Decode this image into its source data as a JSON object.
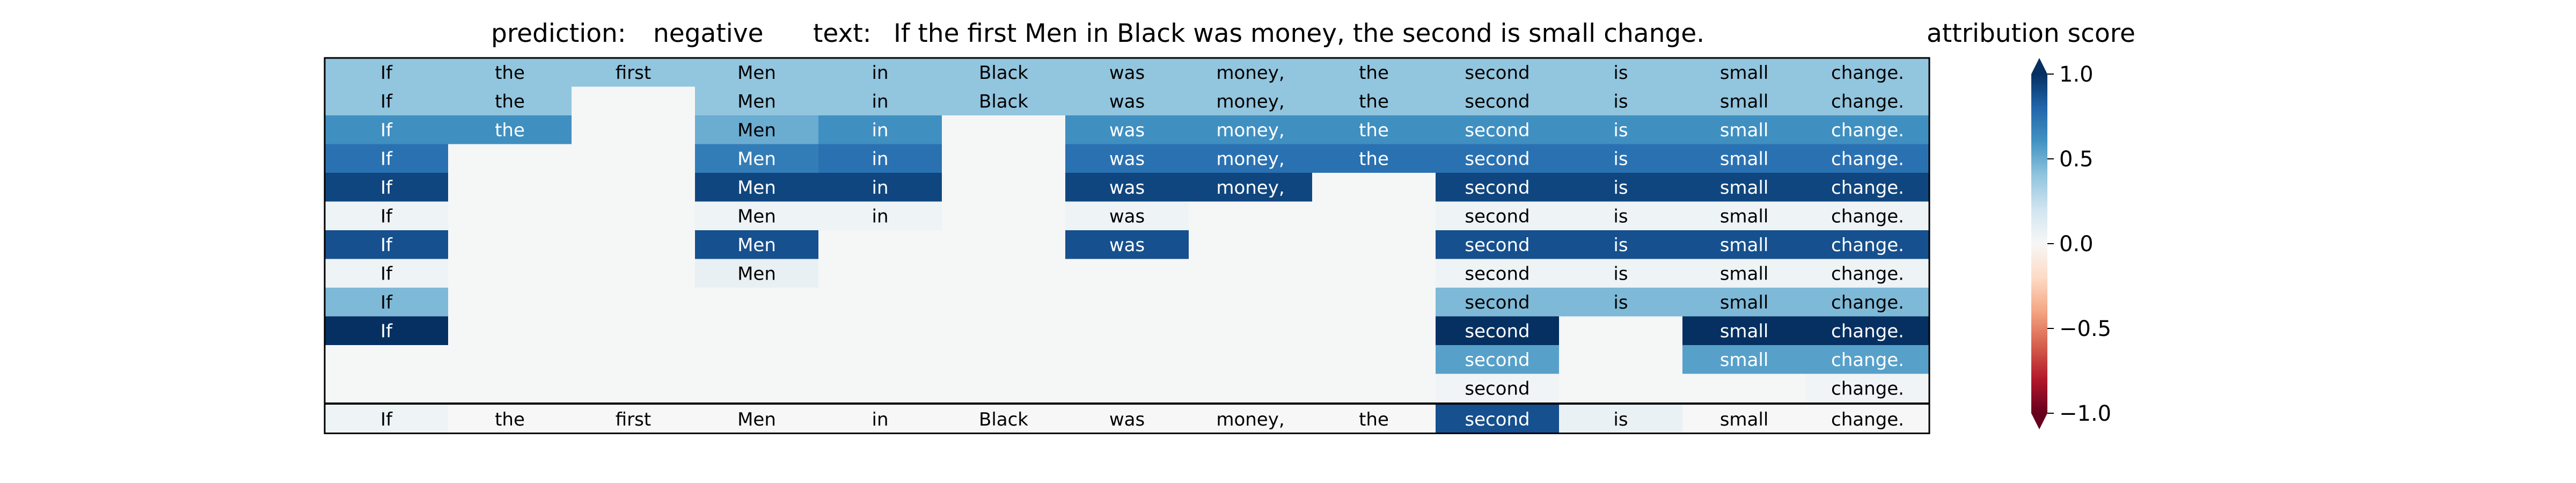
{
  "header": {
    "prediction_label": "prediction:",
    "prediction_value": "negative",
    "text_label": "text:",
    "text_value": "If the first Men in Black was money, the second is small change.",
    "colorbar_title": "attribution score"
  },
  "chart_data": {
    "type": "heatmap",
    "tokens": [
      "If",
      "the",
      "first",
      "Men",
      "in",
      "Black",
      "was",
      "money,",
      "the",
      "second",
      "is",
      "small",
      "change."
    ],
    "rows": [
      [
        0.4,
        0.4,
        0.4,
        0.4,
        0.4,
        0.4,
        0.4,
        0.4,
        0.4,
        0.4,
        0.4,
        0.4,
        0.4
      ],
      [
        0.4,
        0.4,
        null,
        0.4,
        0.4,
        0.4,
        0.4,
        0.4,
        0.4,
        0.4,
        0.4,
        0.4,
        0.4
      ],
      [
        0.62,
        0.62,
        null,
        0.5,
        0.62,
        null,
        0.62,
        0.62,
        0.62,
        0.62,
        0.62,
        0.62,
        0.62
      ],
      [
        0.75,
        null,
        null,
        0.7,
        0.75,
        null,
        0.75,
        0.75,
        0.75,
        0.75,
        0.75,
        0.75,
        0.75
      ],
      [
        0.92,
        null,
        null,
        0.92,
        0.92,
        null,
        0.92,
        0.92,
        null,
        0.92,
        0.92,
        0.92,
        0.92
      ],
      [
        0.05,
        null,
        null,
        0.05,
        0.05,
        null,
        0.05,
        null,
        null,
        0.05,
        0.05,
        0.05,
        0.05
      ],
      [
        0.88,
        null,
        null,
        0.88,
        null,
        null,
        0.88,
        null,
        null,
        0.88,
        0.88,
        0.88,
        0.88
      ],
      [
        0.05,
        null,
        null,
        0.08,
        null,
        null,
        null,
        null,
        null,
        0.05,
        0.05,
        0.05,
        0.05
      ],
      [
        0.45,
        null,
        null,
        null,
        null,
        null,
        null,
        null,
        null,
        0.45,
        0.45,
        0.45,
        0.45
      ],
      [
        1.0,
        null,
        null,
        null,
        null,
        null,
        null,
        null,
        null,
        1.0,
        null,
        1.0,
        1.0
      ],
      [
        null,
        null,
        null,
        null,
        null,
        null,
        null,
        null,
        null,
        0.55,
        null,
        0.55,
        0.55
      ],
      [
        null,
        null,
        null,
        null,
        null,
        null,
        null,
        null,
        null,
        0.03,
        null,
        null,
        0.03
      ]
    ],
    "summary_row": [
      0.05,
      0.0,
      0.0,
      0.0,
      0.0,
      0.0,
      0.0,
      0.0,
      0.0,
      0.88,
      0.07,
      0.0,
      0.0
    ],
    "colorbar": {
      "colormap": "RdBu",
      "range": [
        -1.0,
        1.0
      ],
      "ticks": [
        1.0,
        0.5,
        0.0,
        -0.5,
        -1.0
      ],
      "tick_labels": [
        "1.0",
        "0.5",
        "0.0",
        "−0.5",
        "−1.0"
      ]
    },
    "colors": {
      "empty_cell": "#f5f6f6",
      "frame": "#000000"
    }
  }
}
